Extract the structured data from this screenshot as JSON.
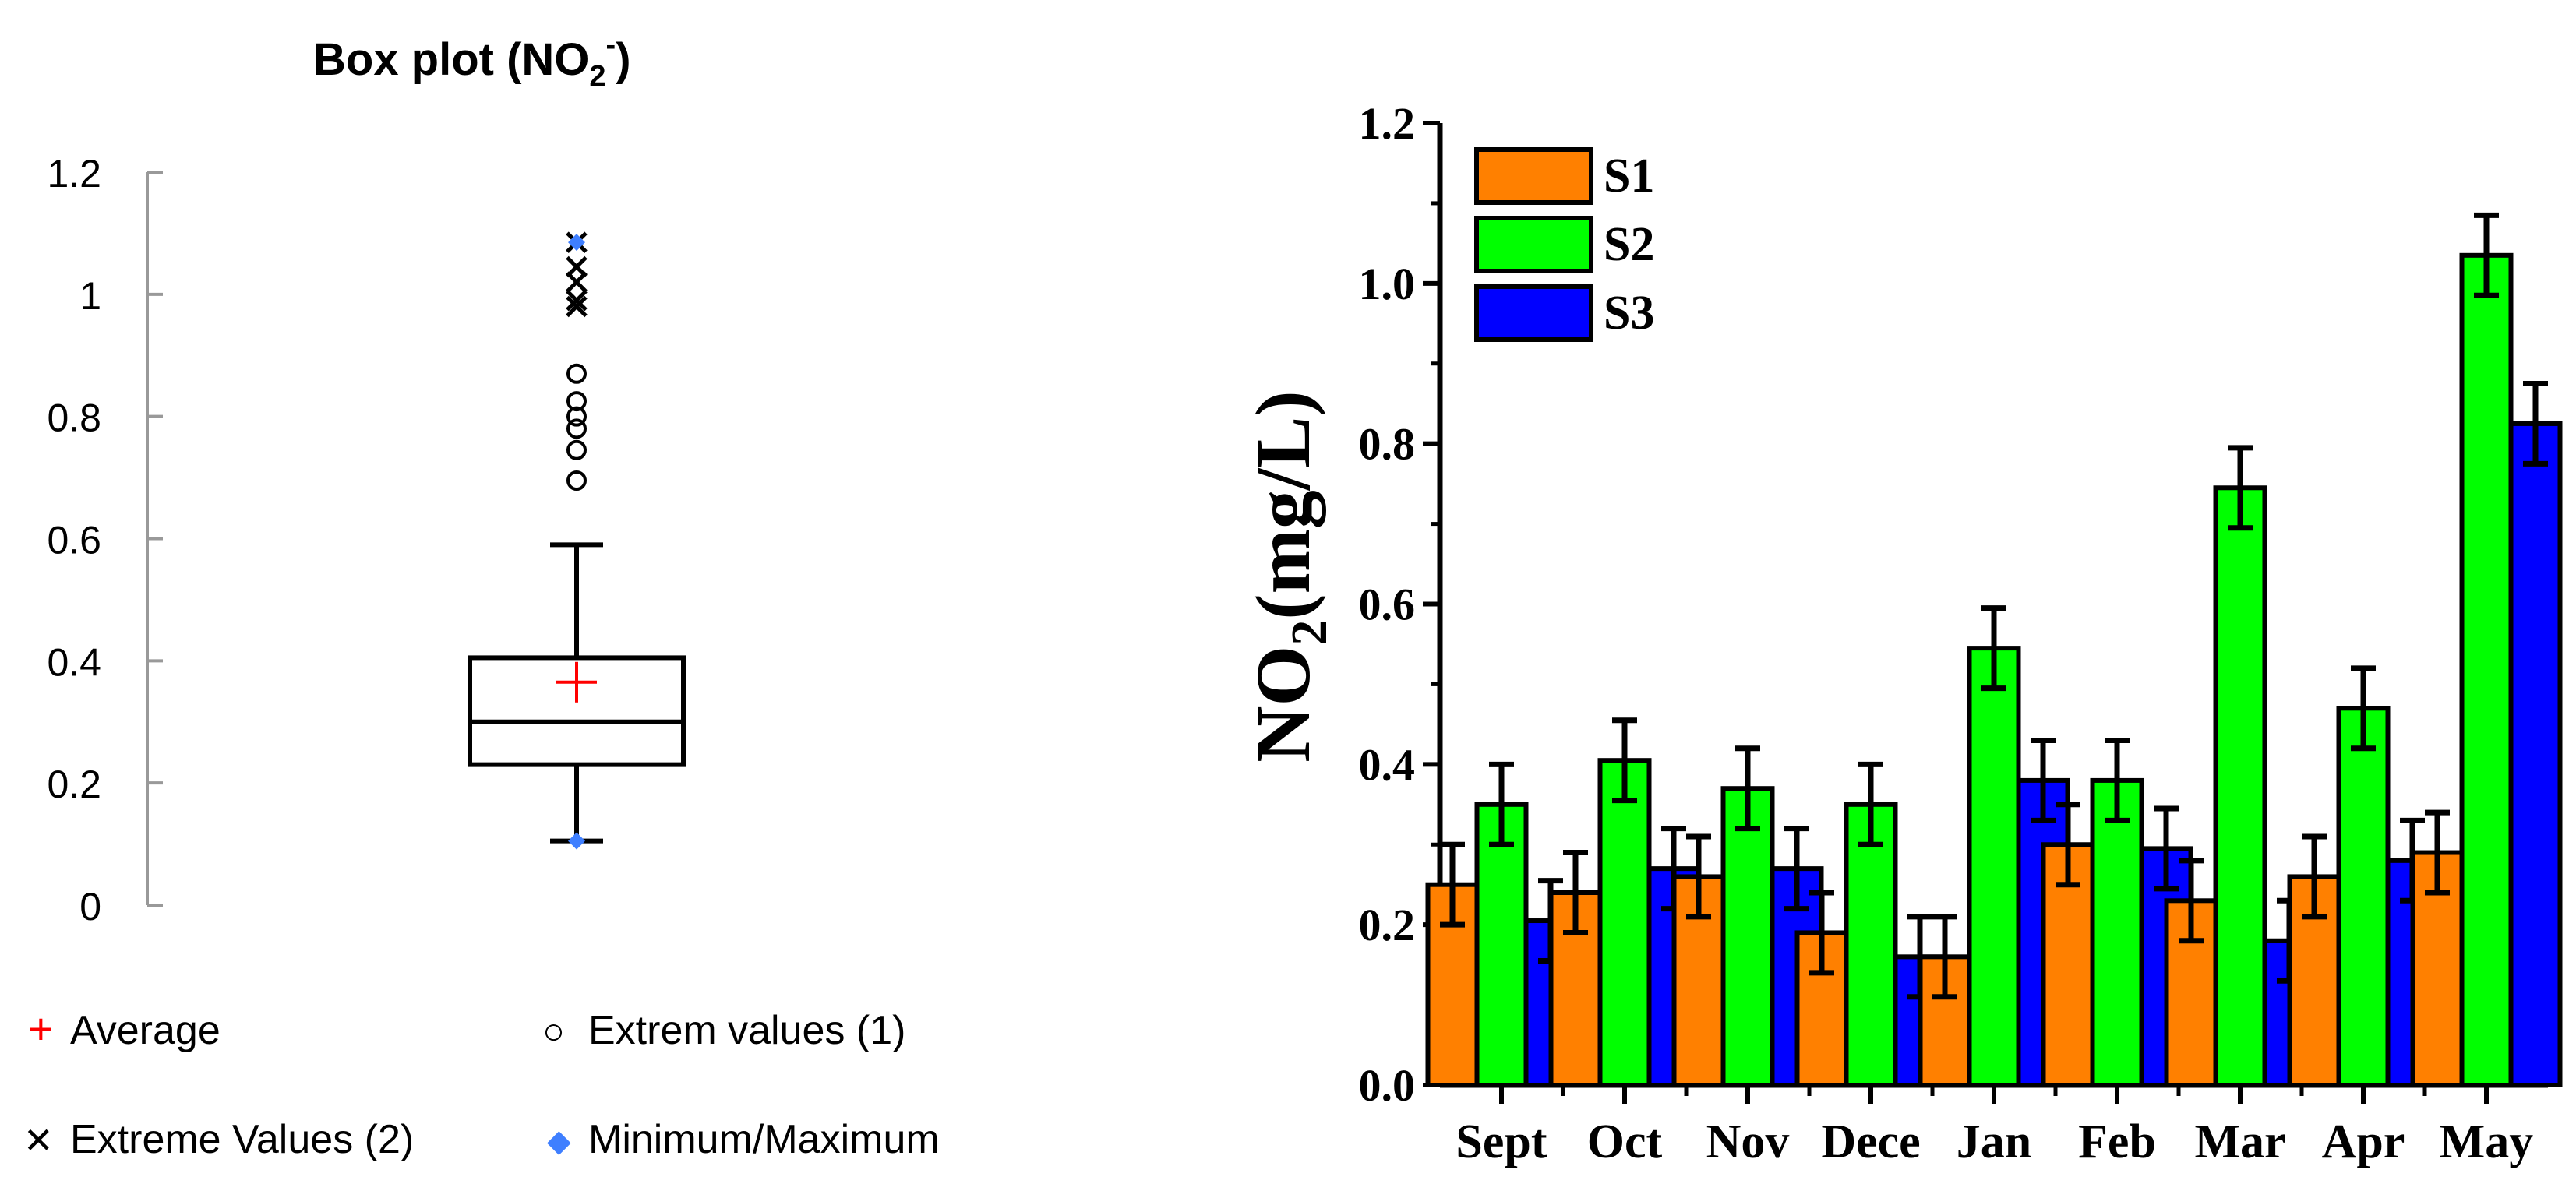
{
  "colors": {
    "s1": "#FF8000",
    "s2": "#00FF00",
    "s3": "#0000FF",
    "average": "#FF0000",
    "minmax": "#3F7FFF",
    "axis_left": "#999999",
    "black": "#000000"
  },
  "chart_data": [
    {
      "type": "box",
      "title": {
        "main": "Box plot (NO",
        "sub": "2",
        "sup": "-",
        "end": ")"
      },
      "ylim": [
        0,
        1.2
      ],
      "yticks": [
        {
          "value": 0,
          "label": "0"
        },
        {
          "value": 0.2,
          "label": "0.2"
        },
        {
          "value": 0.4,
          "label": "0.4"
        },
        {
          "value": 0.6,
          "label": "0.6"
        },
        {
          "value": 0.8,
          "label": "0.8"
        },
        {
          "value": 1.0,
          "label": "1"
        },
        {
          "value": 1.2,
          "label": "1.2"
        }
      ],
      "stats": {
        "min": 0.105,
        "whisker_low": 0.105,
        "q1": 0.23,
        "median": 0.3,
        "q3": 0.405,
        "whisker_high": 0.59,
        "mean": 0.365,
        "max": 1.085
      },
      "extreme_values_1": [
        0.695,
        0.745,
        0.78,
        0.8,
        0.825,
        0.87
      ],
      "extreme_values_2": [
        0.98,
        0.99,
        1.02,
        1.045,
        1.085
      ],
      "legend": [
        {
          "symbol": "+",
          "label": "Average"
        },
        {
          "symbol": "○",
          "label": "Extrem values (1)"
        },
        {
          "symbol": "✕",
          "label": "Extreme Values (2)"
        },
        {
          "symbol": "◆",
          "label": "Minimum/Maximum"
        }
      ]
    },
    {
      "type": "bar",
      "categories": [
        "Sept",
        "Oct",
        "Nov",
        "Dece",
        "Jan",
        "Feb",
        "Mar",
        "Apr",
        "May"
      ],
      "series": [
        {
          "name": "S1",
          "values": [
            0.25,
            0.24,
            0.26,
            0.19,
            0.16,
            0.3,
            0.23,
            0.26,
            0.29
          ],
          "errors": [
            0.05,
            0.05,
            0.05,
            0.05,
            0.05,
            0.05,
            0.05,
            0.05,
            0.05
          ]
        },
        {
          "name": "S2",
          "values": [
            0.35,
            0.405,
            0.37,
            0.35,
            0.545,
            0.38,
            0.745,
            0.47,
            1.035
          ],
          "errors": [
            0.05,
            0.05,
            0.05,
            0.05,
            0.05,
            0.05,
            0.05,
            0.05,
            0.05
          ]
        },
        {
          "name": "S3",
          "values": [
            0.205,
            0.27,
            0.27,
            0.16,
            0.38,
            0.295,
            0.18,
            0.28,
            0.825
          ],
          "errors": [
            0.05,
            0.05,
            0.05,
            0.05,
            0.05,
            0.05,
            0.05,
            0.05,
            0.05
          ]
        }
      ],
      "ylabel": {
        "main": "NO",
        "sub": "2",
        "end": "(mg/L)"
      },
      "xlabel": "",
      "ylim": [
        0,
        1.2
      ],
      "yticks": [
        {
          "value": 0,
          "label": "0.0"
        },
        {
          "value": 0.2,
          "label": "0.2"
        },
        {
          "value": 0.4,
          "label": "0.4"
        },
        {
          "value": 0.6,
          "label": "0.6"
        },
        {
          "value": 0.8,
          "label": "0.8"
        },
        {
          "value": 1.0,
          "label": "1.0"
        },
        {
          "value": 1.2,
          "label": "1.2"
        }
      ],
      "legend_position": "top-left"
    }
  ]
}
